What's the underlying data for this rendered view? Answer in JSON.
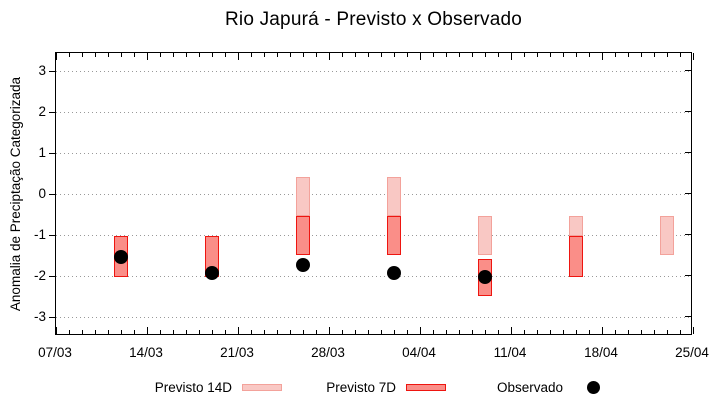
{
  "title": "Rio Japurá - Previsto x Observado",
  "y_axis": {
    "label": "Anomalia de Preciptação Categorizada",
    "tick_labels": [
      "3",
      "2",
      "1",
      "0",
      "-1",
      "-2",
      "-3"
    ],
    "tick_values": [
      3,
      2,
      1,
      0,
      -1,
      -2,
      -3
    ]
  },
  "x_axis": {
    "tick_labels": [
      "07/03",
      "14/03",
      "21/03",
      "28/03",
      "04/04",
      "11/04",
      "18/04",
      "25/04"
    ],
    "minor_tick_unit": "day",
    "major_tick_unit": "week"
  },
  "legend": [
    {
      "label": "Previsto 14D",
      "marker": "swatch",
      "fill": "#f9c8c4",
      "border": "#f3a29b"
    },
    {
      "label": "Previsto 7D",
      "marker": "swatch",
      "fill": "#fa8e88",
      "border": "#ee1510"
    },
    {
      "label": "Observado",
      "marker": "dot",
      "fill": "#000000",
      "border": "#000000"
    }
  ],
  "colors": {
    "forecast_14d_fill": "#f9c8c4",
    "forecast_14d_border": "#f3a29b",
    "forecast_7d_fill": "#fa8e88",
    "forecast_7d_border": "#ee1510",
    "observed": "#000000",
    "grid": "#999999",
    "axis": "#000000"
  },
  "chart_data": {
    "type": "bar",
    "subtype": "range-bars-with-scatter",
    "title": "Rio Japurá - Previsto x Observado",
    "xlabel": "",
    "ylabel": "Anomalia de Preciptação Categorizada",
    "ylim": [
      -3.5,
      3.5
    ],
    "x_start": "07/03",
    "x_end": "25/04",
    "x_span_days": 49,
    "grid": "horizontal dotted at integer y values",
    "legend_position": "below plot, horizontal",
    "categories": [
      "12/03",
      "19/03",
      "26/03",
      "02/04",
      "09/04",
      "16/04",
      "23/04"
    ],
    "category_day_offsets": [
      5,
      12,
      19,
      26,
      33,
      40,
      47
    ],
    "series": [
      {
        "name": "Previsto 14D",
        "type": "range-bar",
        "ranges": [
          null,
          null,
          [
            0.45,
            -0.5
          ],
          [
            0.45,
            -0.5
          ],
          [
            -0.5,
            -1.45
          ],
          [
            -0.5,
            -1.0
          ],
          [
            -0.5,
            -1.45
          ]
        ]
      },
      {
        "name": "Previsto 7D",
        "type": "range-bar",
        "ranges": [
          [
            -1.0,
            -2.0
          ],
          [
            -1.0,
            -2.0
          ],
          [
            -0.5,
            -1.45
          ],
          [
            -0.5,
            -1.45
          ],
          [
            -1.55,
            -2.45
          ],
          [
            -1.0,
            -2.0
          ],
          null
        ]
      },
      {
        "name": "Observado",
        "type": "scatter",
        "values": [
          -1.5,
          -1.9,
          -1.7,
          -1.9,
          -2.0,
          null,
          null
        ]
      }
    ]
  }
}
